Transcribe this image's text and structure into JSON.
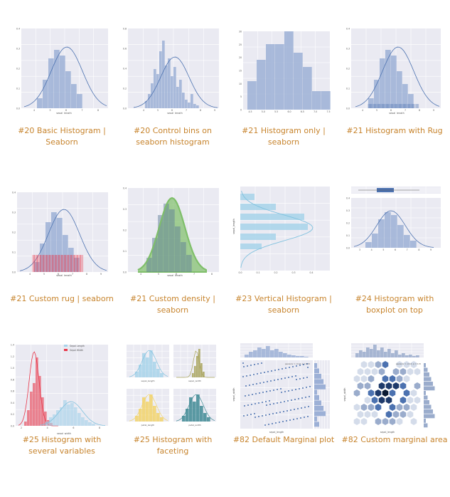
{
  "gallery": [
    {
      "caption": "#20 Basic Histogram | Seaborn",
      "xlabel": "sepal_length",
      "ylabel": ""
    },
    {
      "caption": "#20 Control bins on seaborn histogram",
      "xlabel": "sepal_length",
      "ylabel": ""
    },
    {
      "caption": "#21 Histogram only | seaborn",
      "xlabel": "",
      "ylabel": ""
    },
    {
      "caption": "#21 Histogram with Rug",
      "xlabel": "sepal_length",
      "ylabel": ""
    },
    {
      "caption": "#21 Custom rug | seaborn",
      "xlabel": "sepal_length",
      "ylabel": ""
    },
    {
      "caption": "#21 Custom density | seaborn",
      "xlabel": "sepal_length",
      "ylabel": ""
    },
    {
      "caption": "#23 Vertical Histogram | seaborn",
      "xlabel": "",
      "ylabel": "sepal_length"
    },
    {
      "caption": "#24 Histogram with boxplot on top",
      "xlabel": "",
      "ylabel": ""
    },
    {
      "caption": "#25 Histogram with several variables",
      "xlabel": "sepal_width",
      "ylabel": "",
      "legend": [
        "Sepal Length",
        "Sepal Width"
      ]
    },
    {
      "caption": "#25 Histogram with faceting",
      "xlabel": "",
      "ylabel": "",
      "facets": [
        "sepal_length",
        "sepal_width",
        "petal_length",
        "petal_width"
      ]
    },
    {
      "caption": "#82 Default Marginal plot",
      "xlabel": "sepal_length",
      "ylabel": "sepal_width",
      "annotation": "pearsonr = -0.12; p = 0.15"
    },
    {
      "caption": "#82 Custom marginal area",
      "xlabel": "sepal_length",
      "ylabel": "sepal_width",
      "annotation": "pearsonr = -0.12; p = 0.15"
    }
  ],
  "colors": {
    "caption": "#c7842d",
    "plot_bg": "#eaeaf2",
    "bar_blue": "#9cb0d6",
    "line_blue": "#4c72b0",
    "rug_red": "#e8374a",
    "density_green": "#7fbf6a",
    "light_blue": "#a7d3ea",
    "yellow": "#f2d46b",
    "olive": "#a8a35a",
    "teal": "#3f8a94",
    "hex_dark": "#0b1a33"
  }
}
